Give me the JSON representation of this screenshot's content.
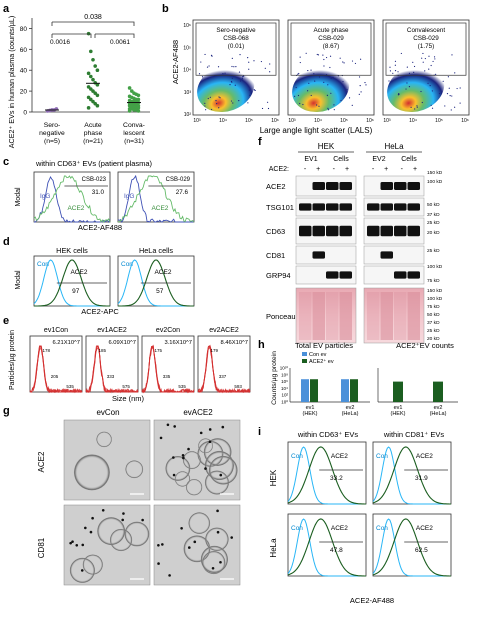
{
  "panel_labels": [
    "a",
    "b",
    "c",
    "d",
    "e",
    "f",
    "g",
    "h",
    "i"
  ],
  "a": {
    "ylabel": "ACE2⁺ EVs in human plasma (counts/µL)",
    "ytick_labels": [
      "0",
      "20",
      "40",
      "60",
      "80"
    ],
    "yticks": [
      0,
      20,
      40,
      60,
      80
    ],
    "ylim": [
      0,
      90
    ],
    "groups": [
      {
        "name": "Sero-negative",
        "label1": "Sero-",
        "label2": "negative",
        "n": "(n=5)",
        "color": "#8c6bb1"
      },
      {
        "name": "Acute phase",
        "label1": "Acute",
        "label2": "phase",
        "n": "(n=21)",
        "color": "#2e7d32"
      },
      {
        "name": "Convalescent",
        "label1": "Conva-",
        "label2": "lescent",
        "n": "(n=31)",
        "color": "#43a047"
      }
    ],
    "pvalues": {
      "top": "0.038",
      "left": "0.0016",
      "right": "0.0061"
    }
  },
  "chart_data": [
    {
      "type": "scatter",
      "panel": "a",
      "ylabel": "ACE2⁺ EVs in human plasma (counts/µL)",
      "ylim": [
        0,
        90
      ],
      "series": [
        {
          "name": "Sero-negative",
          "values": [
            1,
            1.5,
            2,
            2,
            3
          ]
        },
        {
          "name": "Acute phase",
          "values": [
            75,
            58,
            50,
            44,
            40,
            37,
            34,
            31,
            28,
            26,
            24,
            22,
            20,
            18,
            16,
            14,
            12,
            10,
            8,
            6,
            4
          ]
        },
        {
          "name": "Convalescent",
          "values": [
            23,
            20,
            18,
            17,
            16,
            15,
            14,
            13,
            12,
            12,
            11,
            10,
            10,
            9,
            9,
            8,
            8,
            7,
            7,
            6,
            6,
            5,
            5,
            4,
            4,
            3,
            3,
            2,
            2,
            1,
            1
          ]
        }
      ]
    },
    {
      "type": "bar",
      "panel": "h",
      "categories": [
        "ev1 (HEK)",
        "ev2 (HeLa)"
      ],
      "series": [
        {
          "name": "Con ev",
          "values": [
            5000000,
            5000000
          ]
        },
        {
          "name": "ACE2⁺ ev",
          "values": [
            5000000,
            5000000
          ]
        }
      ],
      "title": "Total EV particles",
      "ylabel": "Counts/µg protein",
      "scale": "log"
    },
    {
      "type": "bar",
      "panel": "h",
      "categories": [
        "ev1 (HEK)",
        "ev2 (HeLa)"
      ],
      "values": [
        1000000,
        1000000
      ],
      "title": "ACE2⁺EV counts",
      "scale": "log"
    }
  ],
  "b": {
    "ylabel": "ACE2-AF488",
    "xlabel": "Large angle light scatter (LALS)",
    "plots": [
      {
        "line1": "Sero-negative",
        "line2": "CSB-068",
        "value": "(0.01)"
      },
      {
        "line1": "Acute phase",
        "line2": "CSB-029",
        "value": "(8.67)"
      },
      {
        "line1": "Convalescent",
        "line2": "CSB-029",
        "value": "(1.75)"
      }
    ],
    "xticks": [
      "10³",
      "10⁴",
      "10⁵",
      "10⁶"
    ],
    "yticks": [
      "10²",
      "10³",
      "10⁴",
      "10⁵",
      "10⁶"
    ]
  },
  "c": {
    "title": "within CD63⁺ EVs (patient plasma)",
    "ylabel": "Modal",
    "xlabel": "ACE2-AF488",
    "plots": [
      {
        "sample": "CSB-023",
        "value": "31.0",
        "igg": "IgG",
        "ace2": "ACE2"
      },
      {
        "sample": "CSB-029",
        "value": "27.6",
        "igg": "IgG",
        "ace2": "ACE2"
      }
    ]
  },
  "d": {
    "ylabel": "Modal",
    "xlabel": "ACE2-APC",
    "plots": [
      {
        "title": "HEK cells",
        "con": "Con",
        "ace2": "ACE2",
        "value": "97"
      },
      {
        "title": "HeLa cells",
        "con": "Con",
        "ace2": "ACE2",
        "value": "57"
      }
    ]
  },
  "e": {
    "ylabel": "Particles/µg protein",
    "xlabel": "Size (nm)",
    "plots": [
      {
        "title": "ev1Con",
        "value": "6.21X10^7",
        "peaks": [
          "178",
          "205",
          "535"
        ]
      },
      {
        "title": "ev1ACE2",
        "value": "6.09X10^7",
        "peaks": [
          "185",
          "333",
          "575"
        ]
      },
      {
        "title": "ev2Con",
        "value": "3.16X10^7",
        "peaks": [
          "175",
          "335",
          "535"
        ]
      },
      {
        "title": "ev2ACE2",
        "value": "8.46X10^7",
        "peaks": [
          "179",
          "337",
          "593"
        ]
      }
    ]
  },
  "f": {
    "groups": [
      {
        "name": "HEK",
        "sub": [
          "EV1",
          "Cells"
        ]
      },
      {
        "name": "HeLa",
        "sub": [
          "EV2",
          "Cells"
        ]
      }
    ],
    "ace2_row": {
      "label": "ACE2:",
      "signs": [
        "-",
        "+",
        "-",
        "+"
      ]
    },
    "rows": [
      "ACE2",
      "TSG101",
      "CD63",
      "CD81",
      "GRP94",
      "Ponceau"
    ],
    "mw": [
      "150 kD",
      "100 kD",
      "50 kD",
      "37 kD",
      "25 kD",
      "20 kD",
      "25 kD",
      "100 kD",
      "75 kD",
      "150 kD",
      "100 kD",
      "75 kD",
      "50 kD",
      "37 kD",
      "25 kD",
      "20 kD"
    ]
  },
  "g": {
    "cols": [
      "evCon",
      "evACE2"
    ],
    "rows": [
      "ACE2",
      "CD81"
    ]
  },
  "h": {
    "left_title": "Total EV particles",
    "right_title": "ACE2⁺EV counts",
    "ylabel": "Counts/µg protein",
    "legend": [
      {
        "name": "Con ev",
        "color": "#4a90d9"
      },
      {
        "name": "ACE2⁺ ev",
        "color": "#1b5e20"
      }
    ],
    "yticks": [
      "10⁰",
      "10²",
      "10⁴",
      "10⁶",
      "10⁸",
      "10¹⁰"
    ],
    "cat_names": [
      "ev1",
      "ev2"
    ],
    "cat_sub": [
      "(HEK)",
      "(HeLa)"
    ]
  },
  "i": {
    "col_titles": [
      "within CD63⁺ EVs",
      "within CD81⁺ EVs"
    ],
    "row_labels": [
      "HEK",
      "HeLa"
    ],
    "xlabel": "ACE2-AF488",
    "plots": [
      {
        "con": "Con",
        "ace2": "ACE2",
        "value": "33.2"
      },
      {
        "con": "Con",
        "ace2": "ACE2",
        "value": "31.9"
      },
      {
        "con": "Con",
        "ace2": "ACE2",
        "value": "47.8"
      },
      {
        "con": "Con",
        "ace2": "ACE2",
        "value": "62.5"
      }
    ]
  }
}
